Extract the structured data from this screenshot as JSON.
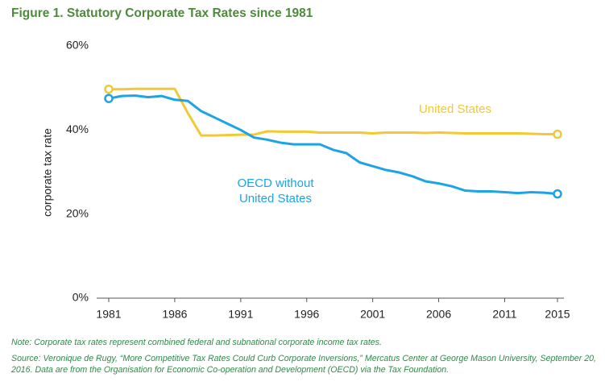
{
  "chart_data": {
    "type": "line",
    "title": "Figure 1. Statutory Corporate Tax Rates since 1981",
    "y_label": "corporate tax rate",
    "x": [
      1981,
      1982,
      1983,
      1984,
      1985,
      1986,
      1987,
      1988,
      1989,
      1990,
      1991,
      1992,
      1993,
      1994,
      1995,
      1996,
      1997,
      1998,
      1999,
      2000,
      2001,
      2002,
      2003,
      2004,
      2005,
      2006,
      2007,
      2008,
      2009,
      2010,
      2011,
      2012,
      2013,
      2014,
      2015
    ],
    "series": [
      {
        "name": "United States",
        "color": "#f2c933",
        "values": [
          49.7,
          49.7,
          49.8,
          49.8,
          49.8,
          49.8,
          44,
          38.7,
          38.7,
          38.8,
          38.9,
          38.9,
          39.7,
          39.6,
          39.6,
          39.6,
          39.4,
          39.4,
          39.4,
          39.4,
          39.2,
          39.4,
          39.4,
          39.4,
          39.3,
          39.4,
          39.3,
          39.2,
          39.2,
          39.2,
          39.2,
          39.2,
          39.1,
          39.0,
          39.0
        ]
      },
      {
        "name": "OECD without United States",
        "color": "#1ea3e4",
        "values": [
          47.5,
          48.1,
          48.2,
          47.8,
          48.1,
          47.2,
          46.9,
          44.5,
          43.0,
          41.5,
          40.0,
          38.2,
          37.7,
          37.0,
          36.6,
          36.6,
          36.6,
          35.3,
          34.5,
          32.3,
          31.4,
          30.5,
          29.9,
          29.0,
          27.8,
          27.3,
          26.6,
          25.6,
          25.4,
          25.4,
          25.2,
          25.0,
          25.2,
          25.1,
          24.8
        ]
      }
    ],
    "xlim": [
      1981,
      2015
    ],
    "xticks": [
      1981,
      1986,
      1991,
      1996,
      2001,
      2006,
      2011,
      2015
    ],
    "ylim": [
      0,
      60
    ],
    "yticks": [
      {
        "value": 0,
        "label": "0%"
      },
      {
        "value": 20,
        "label": "20%"
      },
      {
        "value": 40,
        "label": "40%"
      },
      {
        "value": 60,
        "label": "60%"
      }
    ],
    "notes": [
      "Note: Corporate tax rates represent combined federal and subnational corporate income tax rates.",
      "Source: Veronique de Rugy, “More Competitive Tax Rates Could Curb Corporate Inversions,” Mercatus Center at George Mason University, September 20, 2016. Data are from the Organisation for Economic Co-operation and Development (OECD) via the Tax Foundation."
    ]
  }
}
